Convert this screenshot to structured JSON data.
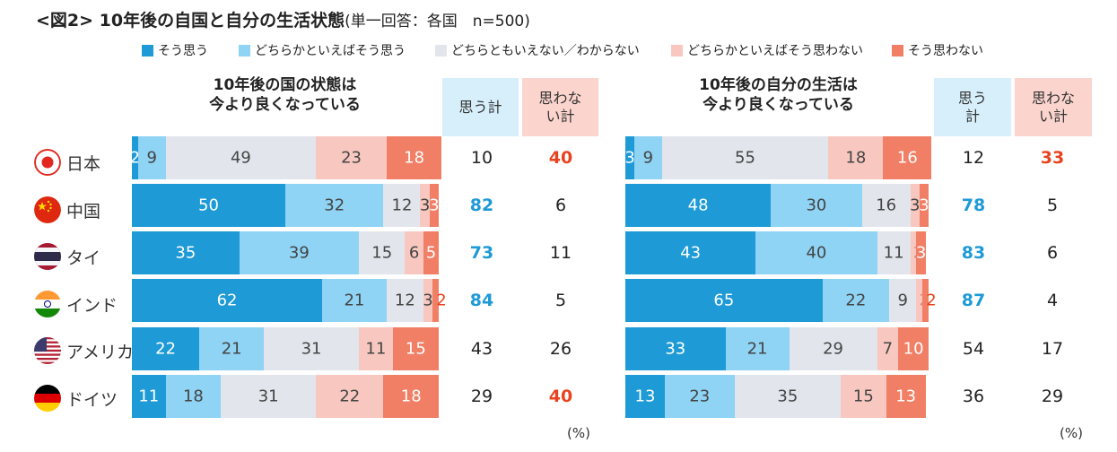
{
  "title": "<図2> 10年後の自国と自分の生活状態",
  "subtitle": "(単一回答：各国　n=500)",
  "legend": [
    "そう思う",
    "どちらかといえばそう思う",
    "どちらともいえない／わからない",
    "どちらかといえばそう思わない",
    "そう思わない"
  ],
  "colors": {
    "so_omou": "#1e9ad6",
    "dochira_so": "#8fd3f5",
    "neutral": "#e2e6ec",
    "dochira_not": "#f8c8c0",
    "not": "#f07f66",
    "blue_text": "#1e9ad6",
    "red_text": "#e8431f",
    "header_blue": "#d6effa",
    "header_pink": "#fbd4cd"
  },
  "columns": {
    "omou_total": "思う計",
    "omowanai_total": "思わない計"
  },
  "countries": [
    {
      "name": "日本",
      "flag": "japan-flag-icon"
    },
    {
      "name": "中国",
      "flag": "china-flag-icon"
    },
    {
      "name": "タイ",
      "flag": "thailand-flag-icon"
    },
    {
      "name": "インド",
      "flag": "india-flag-icon"
    },
    {
      "name": "アメリカ",
      "flag": "usa-flag-icon"
    },
    {
      "name": "ドイツ",
      "flag": "germany-flag-icon"
    }
  ],
  "percent_unit": "(%)",
  "chart_data": [
    {
      "type": "bar",
      "orientation": "horizontal-stacked-100",
      "title": "10年後の国の状態は今より良くなっている",
      "title_lines": [
        "10年後の国の状態は",
        "今より良くなっている"
      ],
      "categories": [
        "日本",
        "中国",
        "タイ",
        "インド",
        "アメリカ",
        "ドイツ"
      ],
      "series": [
        {
          "name": "そう思う",
          "values": [
            2,
            50,
            35,
            62,
            22,
            11
          ]
        },
        {
          "name": "どちらかといえばそう思う",
          "values": [
            9,
            32,
            39,
            21,
            21,
            18
          ]
        },
        {
          "name": "どちらともいえない／わからない",
          "values": [
            49,
            12,
            15,
            12,
            31,
            31
          ]
        },
        {
          "name": "どちらかといえばそう思わない",
          "values": [
            23,
            3,
            6,
            3,
            11,
            22
          ]
        },
        {
          "name": "そう思わない",
          "values": [
            18,
            3,
            5,
            2,
            15,
            18
          ]
        }
      ],
      "omou_total": [
        10,
        82,
        73,
        84,
        43,
        29
      ],
      "omowanai_total": [
        40,
        6,
        11,
        5,
        26,
        40
      ],
      "omou_highlight": [
        false,
        true,
        true,
        true,
        false,
        false
      ],
      "omowanai_highlight": [
        true,
        false,
        false,
        false,
        false,
        true
      ]
    },
    {
      "type": "bar",
      "orientation": "horizontal-stacked-100",
      "title": "10年後の自分の生活は今より良くなっている",
      "title_lines": [
        "10年後の自分の生活は",
        "今より良くなっている"
      ],
      "categories": [
        "日本",
        "中国",
        "タイ",
        "インド",
        "アメリカ",
        "ドイツ"
      ],
      "series": [
        {
          "name": "そう思う",
          "values": [
            3,
            48,
            43,
            65,
            33,
            13
          ]
        },
        {
          "name": "どちらかといえばそう思う",
          "values": [
            9,
            30,
            40,
            22,
            21,
            23
          ]
        },
        {
          "name": "どちらともいえない／わからない",
          "values": [
            55,
            16,
            11,
            9,
            29,
            35
          ]
        },
        {
          "name": "どちらかといえばそう思わない",
          "values": [
            18,
            3,
            2,
            2,
            7,
            15
          ]
        },
        {
          "name": "そう思わない",
          "values": [
            16,
            3,
            3,
            2,
            10,
            13
          ]
        }
      ],
      "omou_total": [
        12,
        78,
        83,
        87,
        54,
        36
      ],
      "omowanai_total": [
        33,
        5,
        6,
        4,
        17,
        29
      ],
      "omou_highlight": [
        false,
        true,
        true,
        true,
        false,
        false
      ],
      "omowanai_highlight": [
        true,
        false,
        false,
        false,
        false,
        false
      ]
    }
  ]
}
